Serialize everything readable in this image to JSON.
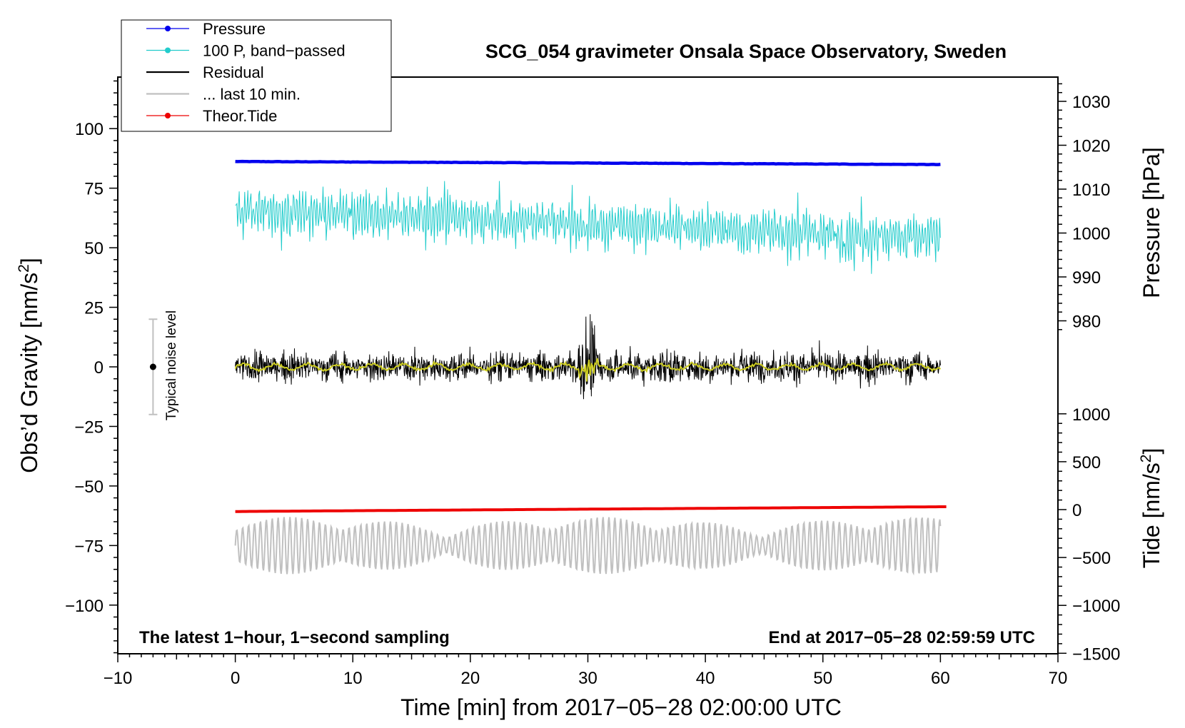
{
  "chart_data": {
    "type": "line",
    "title": "SCG_054 gravimeter Onsala Space Observatory, Sweden",
    "xlabel": "Time [min] from 2017−05−28 02:00:00 UTC",
    "ylabel": "Obs’d Gravity [nm/s2]",
    "ylabel_main": "Obs’d Gravity [nm/s",
    "ylabel_sup": "2",
    "ylabel_close": "]",
    "y2label_pressure": "Pressure [hPa]",
    "y2label_tide": "Tide [nm/s2]",
    "y2label_tide_main": "Tide [nm/s",
    "y2label_tide_sup": "2",
    "y2label_tide_close": "]",
    "xlim": [
      -10,
      70
    ],
    "ylim": [
      -120,
      120
    ],
    "pressure_axis_range": [
      975,
      1035
    ],
    "tide_axis_range": [
      -1500,
      1000
    ],
    "x_ticks": [
      -10,
      0,
      10,
      20,
      30,
      40,
      50,
      60,
      70
    ],
    "x_tick_labels": [
      "−10",
      "0",
      "10",
      "20",
      "30",
      "40",
      "50",
      "60",
      "70"
    ],
    "y_ticks": [
      100,
      75,
      50,
      25,
      0,
      -25,
      -50,
      -75,
      -100
    ],
    "y_tick_labels": [
      "100",
      "75",
      "50",
      "25",
      "0",
      "−25",
      "−50",
      "−75",
      "−100"
    ],
    "pressure_ticks": [
      1030,
      1020,
      1010,
      1000,
      990,
      980
    ],
    "pressure_tick_labels": [
      "1030",
      "1020",
      "1010",
      "1000",
      "990",
      "980"
    ],
    "tide_ticks": [
      1000,
      500,
      0,
      -500,
      -1000,
      -1500
    ],
    "tide_tick_labels": [
      "1000",
      "500",
      "0",
      "−500",
      "−1000",
      "−1500"
    ],
    "annotation_left": "The latest 1−hour, 1−second sampling",
    "annotation_right": "End at 2017−05−28 02:59:59 UTC",
    "noise_label": "Typical noise level",
    "noise_bar": {
      "x": -7,
      "center": 0,
      "low": -20,
      "high": 20
    },
    "legend": [
      {
        "label": "Pressure",
        "color": "#0000ee",
        "marker": true
      },
      {
        "label": "100 P, band−passed",
        "color": "#22cccc",
        "marker": true
      },
      {
        "label": "Residual",
        "color": "#000000",
        "marker": false
      },
      {
        "label": "... last 10 min.",
        "color": "#c0c0c0",
        "marker": false
      },
      {
        "label": "Theor.Tide",
        "color": "#ee0000",
        "marker": true
      }
    ],
    "series": [
      {
        "name": "Pressure",
        "axis": "pressure",
        "color": "#0000ee",
        "x_range": [
          0,
          60
        ],
        "start": 1016.3,
        "end": 1015.6
      },
      {
        "name": "100 P, band−passed",
        "axis": "gravity",
        "color": "#22cccc",
        "x_range": [
          0,
          60
        ],
        "baseline_start": 66,
        "baseline_end": 54,
        "min": 39,
        "max": 78
      },
      {
        "name": "Residual",
        "axis": "gravity",
        "color": "#000000",
        "x_range": [
          0,
          60
        ],
        "baseline": 0,
        "min": -21,
        "max": 24,
        "spike_at_min": 30
      },
      {
        "name": "Residual smoothed",
        "axis": "gravity",
        "color": "#cccc22",
        "x_range": [
          0,
          60
        ],
        "baseline": 0
      },
      {
        "name": "... last 10 min.",
        "axis": "gravity",
        "color": "#c0c0c0",
        "x_range": [
          0,
          60
        ],
        "baseline": -75,
        "min": -87,
        "max": -62
      },
      {
        "name": "Theor.Tide",
        "axis": "tide",
        "color": "#ee0000",
        "x_range": [
          0,
          60.5
        ],
        "start": -20,
        "end": 30
      }
    ]
  }
}
